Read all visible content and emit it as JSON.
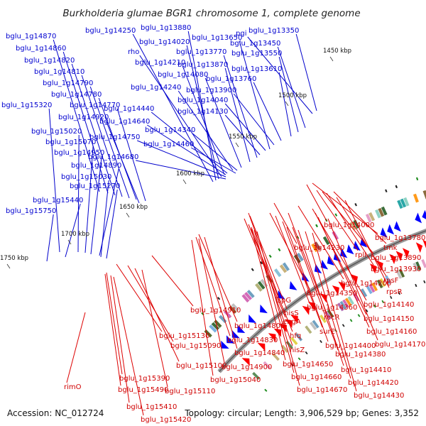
{
  "title": "Burkholderia glumae BGR1 chromosome 1, complete genome",
  "accession": "Accession: NC_012724",
  "summary": "Topology: circular; Length: 3,906,529 bp; Genes: 3,352",
  "colors": {
    "forward": "#0000d0",
    "reverse": "#d00000",
    "backbone": "#888888"
  },
  "kbp_ticks": [
    "1450 kbp",
    "1500 kbp",
    "1550 kbp",
    "1600 kbp",
    "1650 kbp",
    "1700 kbp",
    "1750 kbp"
  ],
  "forward_labels": [
    "bglu_1g14870",
    "bglu_1g14860",
    "bglu_1g14820",
    "bglu_1g14810",
    "bglu_1g14790",
    "bglu_1g14780",
    "bglu_1g15320",
    "bglu_1g14770",
    "bglu_1g14920",
    "bglu_1g15020",
    "bglu_1g15070",
    "bglu_1g14950",
    "bglu_1g14890",
    "bglu_1g15030",
    "bglu_1g15270",
    "bglu_1g15440",
    "bglu_1g15750",
    "bglu_1g14250",
    "bglu_1g13880",
    "bglu_1g14020",
    "rho",
    "bglu_1g14210",
    "bglu_1g13650",
    "pgi",
    "bglu_1g13350",
    "bglu_1g13450",
    "bglu_1g13770",
    "bglu_1g13550",
    "bglu_1g13870",
    "bglu_1g13610",
    "bglu_1g14080",
    "bglu_1g13760",
    "bglu_1g14240",
    "bglu_1g13900",
    "bglu_1g14040",
    "bglu_1g14440",
    "bglu_1g14130",
    "bglu_1g14640",
    "bglu_1g14340",
    "bglu_1g14750",
    "bglu_1g14460",
    "bglu_1g14680"
  ],
  "reverse_labels": [
    "bglu_1g14000",
    "bglu_1g13780",
    "tmk",
    "bglu_1g14230",
    "rplI",
    "bglu_1g13890",
    "bglu_1g13930",
    "rpsF",
    "bglu_1g14200",
    "rpsR",
    "bglu_1g14350",
    "bglu_1g14140",
    "ispG",
    "bglu_1g14360",
    "bglu_1g14910",
    "hisS",
    "recR",
    "bglu_1g14150",
    "engA",
    "bglu_1g14160",
    "bglu_1g14800",
    "hfq",
    "surE",
    "bglu_1g14170",
    "bglu_1g14830",
    "bglu_1g14400",
    "bglu_1g15130",
    "hisZ",
    "bglu_1g14380",
    "bglu_1g15090",
    "bglu_1g14840",
    "bglu_1g15100",
    "bglu_1g14900",
    "bglu_1g14650",
    "bglu_1g14410",
    "bglu_1g15040",
    "bglu_1g14660",
    "bglu_1g14420",
    "rimO",
    "bglu_1g15390",
    "bglu_1g15110",
    "bglu_1g14670",
    "bglu_1g14430",
    "bglu_1g15490",
    "bglu_1g15410",
    "bglu_1g15420"
  ]
}
